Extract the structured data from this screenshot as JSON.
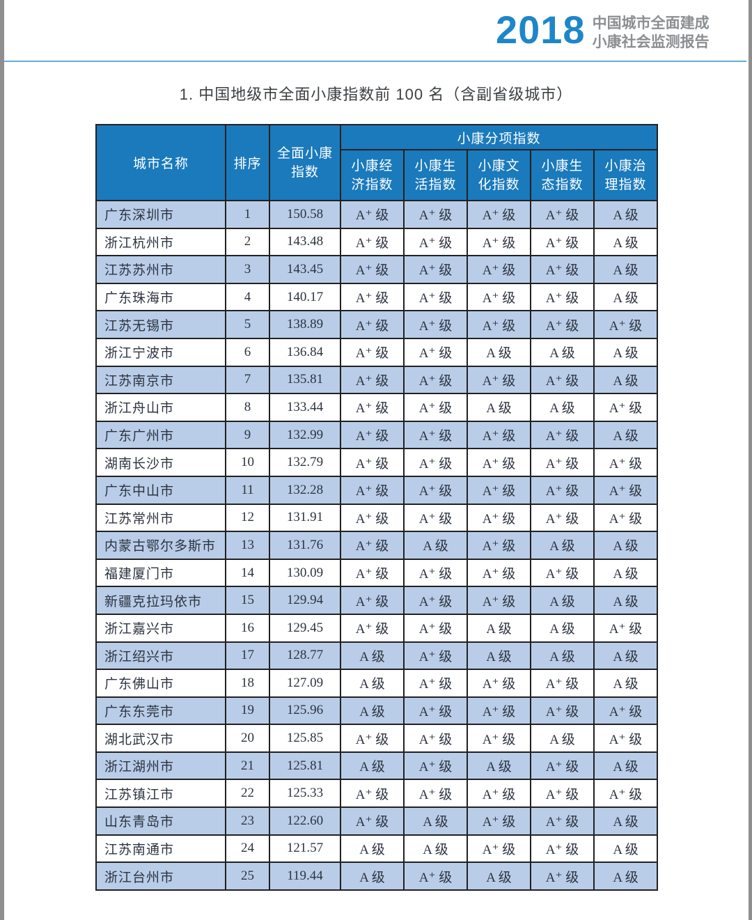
{
  "page": {
    "report_year": "2018",
    "report_title_line1": "中国城市全面建成",
    "report_title_line2": "小康社会监测报告",
    "table_caption": "1. 中国地级市全面小康指数前 100 名（含副省级城市）"
  },
  "colors": {
    "header_blue": "#1a7abc",
    "accent_blue": "#1e86c8",
    "alt_row_blue": "#b9cde8",
    "divider_blue": "#66abd8",
    "subtitle_gray": "#8b8f92"
  },
  "table": {
    "headers": {
      "city": "城市名称",
      "rank": "排序",
      "overall": "全面小康\n指数",
      "group": "小康分项指数",
      "sub": [
        "小康经\n济指数",
        "小康生\n活指数",
        "小康文\n化指数",
        "小康生\n态指数",
        "小康治\n理指数"
      ]
    },
    "rows": [
      {
        "city": "广东深圳市",
        "rank": "1",
        "index": "150.58",
        "grades": [
          "A⁺ 级",
          "A⁺ 级",
          "A⁺ 级",
          "A⁺ 级",
          "A 级"
        ]
      },
      {
        "city": "浙江杭州市",
        "rank": "2",
        "index": "143.48",
        "grades": [
          "A⁺ 级",
          "A⁺ 级",
          "A⁺ 级",
          "A⁺ 级",
          "A 级"
        ]
      },
      {
        "city": "江苏苏州市",
        "rank": "3",
        "index": "143.45",
        "grades": [
          "A⁺ 级",
          "A⁺ 级",
          "A⁺ 级",
          "A⁺ 级",
          "A 级"
        ]
      },
      {
        "city": "广东珠海市",
        "rank": "4",
        "index": "140.17",
        "grades": [
          "A⁺ 级",
          "A⁺ 级",
          "A⁺ 级",
          "A⁺ 级",
          "A 级"
        ]
      },
      {
        "city": "江苏无锡市",
        "rank": "5",
        "index": "138.89",
        "grades": [
          "A⁺ 级",
          "A⁺ 级",
          "A⁺ 级",
          "A⁺ 级",
          "A⁺ 级"
        ]
      },
      {
        "city": "浙江宁波市",
        "rank": "6",
        "index": "136.84",
        "grades": [
          "A⁺ 级",
          "A⁺ 级",
          "A 级",
          "A 级",
          "A 级"
        ]
      },
      {
        "city": "江苏南京市",
        "rank": "7",
        "index": "135.81",
        "grades": [
          "A⁺ 级",
          "A⁺ 级",
          "A⁺ 级",
          "A⁺ 级",
          "A 级"
        ]
      },
      {
        "city": "浙江舟山市",
        "rank": "8",
        "index": "133.44",
        "grades": [
          "A⁺ 级",
          "A⁺ 级",
          "A 级",
          "A 级",
          "A⁺ 级"
        ]
      },
      {
        "city": "广东广州市",
        "rank": "9",
        "index": "132.99",
        "grades": [
          "A⁺ 级",
          "A⁺ 级",
          "A⁺ 级",
          "A⁺ 级",
          "A 级"
        ]
      },
      {
        "city": "湖南长沙市",
        "rank": "10",
        "index": "132.79",
        "grades": [
          "A⁺ 级",
          "A⁺ 级",
          "A⁺ 级",
          "A⁺ 级",
          "A⁺ 级"
        ]
      },
      {
        "city": "广东中山市",
        "rank": "11",
        "index": "132.28",
        "grades": [
          "A⁺ 级",
          "A⁺ 级",
          "A⁺ 级",
          "A⁺ 级",
          "A⁺ 级"
        ]
      },
      {
        "city": "江苏常州市",
        "rank": "12",
        "index": "131.91",
        "grades": [
          "A⁺ 级",
          "A⁺ 级",
          "A⁺ 级",
          "A⁺ 级",
          "A⁺ 级"
        ]
      },
      {
        "city": "内蒙古鄂尔多斯市",
        "rank": "13",
        "index": "131.76",
        "grades": [
          "A⁺ 级",
          "A 级",
          "A⁺ 级",
          "A 级",
          "A 级"
        ]
      },
      {
        "city": "福建厦门市",
        "rank": "14",
        "index": "130.09",
        "grades": [
          "A⁺ 级",
          "A⁺ 级",
          "A⁺ 级",
          "A⁺ 级",
          "A 级"
        ]
      },
      {
        "city": "新疆克拉玛依市",
        "rank": "15",
        "index": "129.94",
        "grades": [
          "A⁺ 级",
          "A⁺ 级",
          "A⁺ 级",
          "A 级",
          "A 级"
        ]
      },
      {
        "city": "浙江嘉兴市",
        "rank": "16",
        "index": "129.45",
        "grades": [
          "A⁺ 级",
          "A⁺ 级",
          "A 级",
          "A 级",
          "A⁺ 级"
        ]
      },
      {
        "city": "浙江绍兴市",
        "rank": "17",
        "index": "128.77",
        "grades": [
          "A 级",
          "A⁺ 级",
          "A 级",
          "A 级",
          "A 级"
        ]
      },
      {
        "city": "广东佛山市",
        "rank": "18",
        "index": "127.09",
        "grades": [
          "A 级",
          "A⁺ 级",
          "A⁺ 级",
          "A⁺ 级",
          "A 级"
        ]
      },
      {
        "city": "广东东莞市",
        "rank": "19",
        "index": "125.96",
        "grades": [
          "A 级",
          "A⁺ 级",
          "A⁺ 级",
          "A⁺ 级",
          "A⁺ 级"
        ]
      },
      {
        "city": "湖北武汉市",
        "rank": "20",
        "index": "125.85",
        "grades": [
          "A⁺ 级",
          "A⁺ 级",
          "A⁺ 级",
          "A 级",
          "A⁺ 级"
        ]
      },
      {
        "city": "浙江湖州市",
        "rank": "21",
        "index": "125.81",
        "grades": [
          "A 级",
          "A⁺ 级",
          "A 级",
          "A⁺ 级",
          "A 级"
        ]
      },
      {
        "city": "江苏镇江市",
        "rank": "22",
        "index": "125.33",
        "grades": [
          "A⁺ 级",
          "A⁺ 级",
          "A⁺ 级",
          "A⁺ 级",
          "A⁺ 级"
        ]
      },
      {
        "city": "山东青岛市",
        "rank": "23",
        "index": "122.60",
        "grades": [
          "A⁺ 级",
          "A 级",
          "A⁺ 级",
          "A⁺ 级",
          "A 级"
        ]
      },
      {
        "city": "江苏南通市",
        "rank": "24",
        "index": "121.57",
        "grades": [
          "A 级",
          "A 级",
          "A⁺ 级",
          "A⁺ 级",
          "A 级"
        ]
      },
      {
        "city": "浙江台州市",
        "rank": "25",
        "index": "119.44",
        "grades": [
          "A 级",
          "A⁺ 级",
          "A 级",
          "A⁺ 级",
          "A 级"
        ]
      }
    ]
  }
}
